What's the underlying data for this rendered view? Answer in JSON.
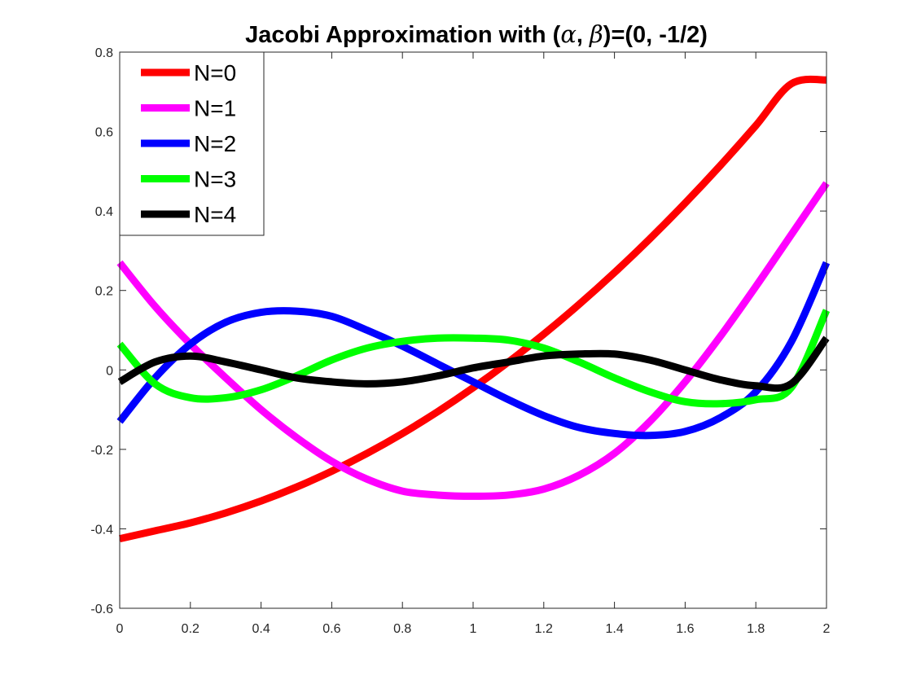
{
  "chart_data": {
    "type": "line",
    "title": {
      "prefix": "Jacobi Approximation with (",
      "alpha": "α",
      "sep": ", ",
      "beta": "β",
      "suffix": ")=(0, -1/2)"
    },
    "xlabel": "",
    "ylabel": "",
    "xlim": [
      0,
      2
    ],
    "ylim": [
      -0.6,
      0.8
    ],
    "x_ticks": [
      0,
      0.2,
      0.4,
      0.6,
      0.8,
      1,
      1.2,
      1.4,
      1.6,
      1.8,
      2
    ],
    "x_tick_labels": [
      "0",
      "0.2",
      "0.4",
      "0.6",
      "0.8",
      "1",
      "1.2",
      "1.4",
      "1.6",
      "1.8",
      "2"
    ],
    "y_ticks": [
      -0.6,
      -0.4,
      -0.2,
      0,
      0.2,
      0.4,
      0.6,
      0.8
    ],
    "y_tick_labels": [
      "-0.6",
      "-0.4",
      "-0.2",
      "0",
      "0.2",
      "0.4",
      "0.6",
      "0.8"
    ],
    "grid": false,
    "legend_position": "top-left",
    "x": [
      0,
      0.1,
      0.2,
      0.3,
      0.4,
      0.5,
      0.6,
      0.7,
      0.8,
      0.9,
      1.0,
      1.1,
      1.2,
      1.3,
      1.4,
      1.5,
      1.6,
      1.7,
      1.8,
      1.9,
      2.0
    ],
    "series": [
      {
        "name": "N=0",
        "color": "#ff0000",
        "values": [
          -0.425,
          -0.405,
          -0.385,
          -0.36,
          -0.33,
          -0.295,
          -0.255,
          -0.21,
          -0.16,
          -0.105,
          -0.045,
          0.02,
          0.09,
          0.165,
          0.245,
          0.33,
          0.42,
          0.515,
          0.615,
          0.72,
          0.73
        ]
      },
      {
        "name": "N=1",
        "color": "#ff00ff",
        "values": [
          0.27,
          0.16,
          0.065,
          -0.02,
          -0.1,
          -0.17,
          -0.23,
          -0.275,
          -0.305,
          -0.315,
          -0.318,
          -0.315,
          -0.3,
          -0.265,
          -0.21,
          -0.13,
          -0.03,
          0.085,
          0.21,
          0.34,
          0.47
        ]
      },
      {
        "name": "N=2",
        "color": "#0000ff",
        "values": [
          -0.13,
          -0.02,
          0.065,
          0.12,
          0.145,
          0.148,
          0.135,
          0.1,
          0.06,
          0.015,
          -0.03,
          -0.075,
          -0.115,
          -0.145,
          -0.16,
          -0.165,
          -0.155,
          -0.12,
          -0.055,
          0.07,
          0.27
        ]
      },
      {
        "name": "N=3",
        "color": "#00ff00",
        "values": [
          0.065,
          -0.035,
          -0.07,
          -0.07,
          -0.05,
          -0.015,
          0.025,
          0.055,
          0.072,
          0.08,
          0.08,
          0.075,
          0.055,
          0.02,
          -0.02,
          -0.055,
          -0.08,
          -0.085,
          -0.075,
          -0.045,
          0.15
        ]
      },
      {
        "name": "N=4",
        "color": "#000000",
        "values": [
          -0.03,
          0.02,
          0.035,
          0.02,
          0.0,
          -0.02,
          -0.03,
          -0.035,
          -0.03,
          -0.015,
          0.005,
          0.02,
          0.035,
          0.04,
          0.04,
          0.025,
          0.0,
          -0.025,
          -0.04,
          -0.035,
          0.08
        ]
      }
    ]
  }
}
